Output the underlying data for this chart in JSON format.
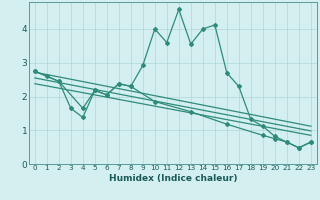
{
  "xlabel": "Humidex (Indice chaleur)",
  "background_color": "#d4efef",
  "line_color": "#2e8b7a",
  "xlim": [
    -0.5,
    23.5
  ],
  "ylim": [
    0,
    4.8
  ],
  "yticks": [
    0,
    1,
    2,
    3,
    4
  ],
  "xticks": [
    0,
    1,
    2,
    3,
    4,
    5,
    6,
    7,
    8,
    9,
    10,
    11,
    12,
    13,
    14,
    15,
    16,
    17,
    18,
    19,
    20,
    21,
    22,
    23
  ],
  "series1_x": [
    0,
    1,
    2,
    3,
    4,
    5,
    6,
    7,
    8,
    9,
    10,
    11,
    12,
    13,
    14,
    15,
    16,
    17,
    18,
    19,
    20,
    21,
    22,
    23
  ],
  "series1_y": [
    2.75,
    2.6,
    2.45,
    1.65,
    1.38,
    2.18,
    2.05,
    2.38,
    2.3,
    2.92,
    4.0,
    3.6,
    4.58,
    3.55,
    4.0,
    4.12,
    2.7,
    2.3,
    1.32,
    1.12,
    0.82,
    0.65,
    0.48,
    0.65
  ],
  "series2_x": [
    0,
    2,
    4,
    5,
    6,
    7,
    8,
    10,
    13,
    16,
    19,
    20,
    21,
    22,
    23
  ],
  "series2_y": [
    2.75,
    2.45,
    1.65,
    2.18,
    2.05,
    2.38,
    2.3,
    1.85,
    1.55,
    1.18,
    0.85,
    0.75,
    0.65,
    0.48,
    0.65
  ],
  "line2_x": [
    0,
    23
  ],
  "line2_y": [
    2.72,
    1.12
  ],
  "line3_x": [
    0,
    23
  ],
  "line3_y": [
    2.55,
    0.98
  ],
  "line4_x": [
    0,
    23
  ],
  "line4_y": [
    2.38,
    0.85
  ]
}
